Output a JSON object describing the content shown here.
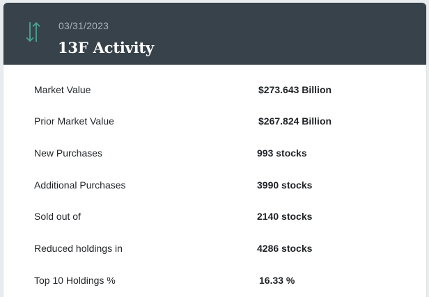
{
  "header": {
    "date": "03/31/2023",
    "title": "13F Activity",
    "icon": "up-down-arrows-icon",
    "icon_color": "#4aa594",
    "background": "#37424a"
  },
  "rows": [
    {
      "label": "Market Value",
      "value": "$273.643 Billion"
    },
    {
      "label": "Prior Market Value",
      "value": "$267.824 Billion"
    },
    {
      "label": "New Purchases",
      "value": "993 stocks"
    },
    {
      "label": "Additional Purchases",
      "value": "3990 stocks"
    },
    {
      "label": "Sold out of",
      "value": "2140 stocks"
    },
    {
      "label": "Reduced holdings in",
      "value": "4286 stocks"
    },
    {
      "label": "Top 10 Holdings %",
      "value": "16.33 %"
    }
  ]
}
